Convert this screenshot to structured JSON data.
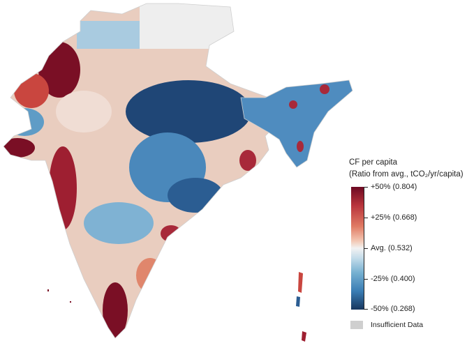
{
  "legend": {
    "title_line1": "CF per capita",
    "title_line2": "(Ratio from avg., tCO₂/yr/capita)",
    "ticks": [
      {
        "label": "+50% (0.804)",
        "value": 0.804
      },
      {
        "label": "+25% (0.668)",
        "value": 0.668
      },
      {
        "label": "Avg. (0.532)",
        "value": 0.532
      },
      {
        "label": "-25% (0.400)",
        "value": 0.4
      },
      {
        "label": "-50% (0.268)",
        "value": 0.268
      }
    ],
    "insufficient_label": "Insufficient Data",
    "colors": {
      "high": "#6d0a22",
      "mid": "#f2f2f2",
      "low": "#17365e",
      "insufficient": "#cfcfcf"
    }
  }
}
